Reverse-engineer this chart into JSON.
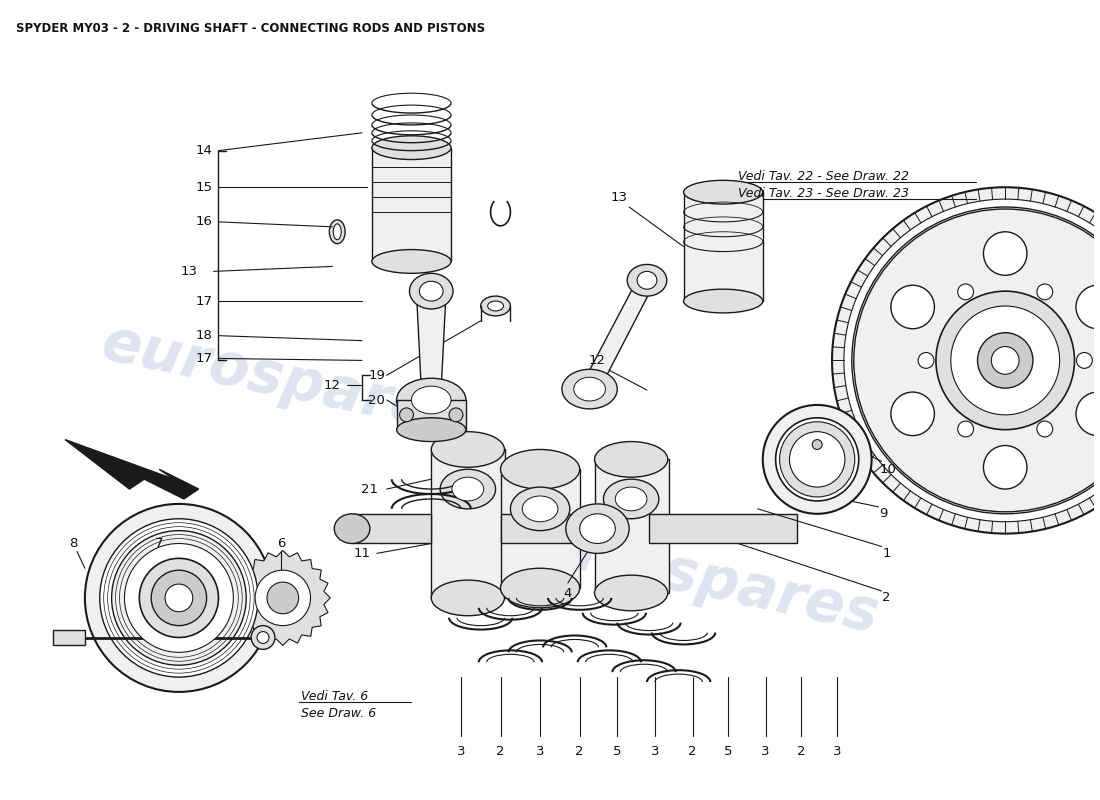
{
  "title": "SPYDER MY03 - 2 - DRIVING SHAFT - CONNECTING RODS AND PISTONS",
  "bg_color": "#ffffff",
  "watermark_text": "eurospares",
  "watermark_color": "#c8d4e8",
  "title_fontsize": 8.5,
  "vedi_tav_22": "Vedi Tav. 22 - See Draw. 22",
  "vedi_tav_23": "Vedi Tav. 23 - See Draw. 23",
  "vedi_tav_6_line1": "Vedi Tav. 6",
  "vedi_tav_6_line2": "See Draw. 6"
}
